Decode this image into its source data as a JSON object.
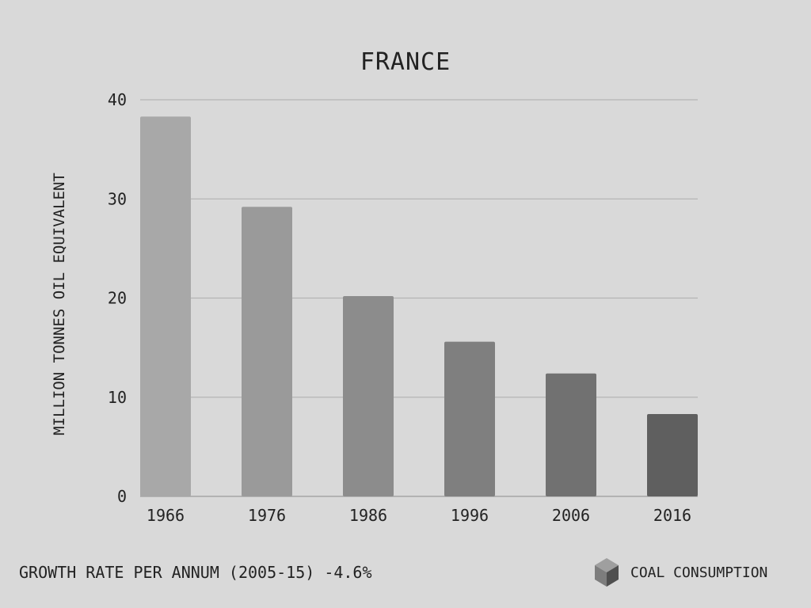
{
  "chart_data": {
    "type": "bar",
    "title": "FRANCE",
    "ylabel": "MILLION TONNES OIL EQUIVALENT",
    "xlabel": "",
    "categories": [
      "1966",
      "1976",
      "1986",
      "1996",
      "2006",
      "2016"
    ],
    "values": [
      38.3,
      29.2,
      20.2,
      15.6,
      12.4,
      8.3
    ],
    "ylim": [
      0,
      40
    ],
    "yticks": [
      "0",
      "10",
      "20",
      "30",
      "40"
    ],
    "grid": true,
    "bar_colors": [
      "#a8a8a8",
      "#9a9a9a",
      "#8c8c8c",
      "#7f7f7f",
      "#717171",
      "#5f5f5f"
    ]
  },
  "footer": {
    "growth_rate": "GROWTH RATE PER ANNUM (2005-15) -4.6%",
    "legend_label": "COAL CONSUMPTION",
    "legend_icon": "cube-icon"
  }
}
